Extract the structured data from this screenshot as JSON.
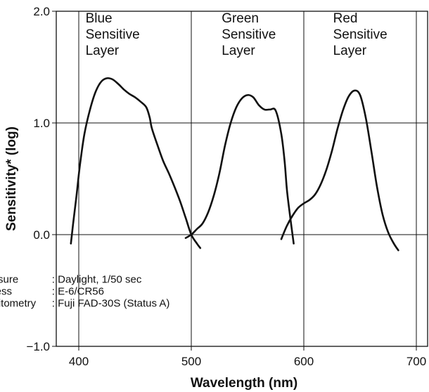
{
  "chart_data": {
    "type": "line",
    "xlabel": "Wavelength (nm)",
    "ylabel": "Sensitivity* (log)",
    "xlim": [
      380,
      710
    ],
    "ylim": [
      -1.0,
      2.0
    ],
    "x_ticks": [
      "400",
      "500",
      "600",
      "700"
    ],
    "x_tick_values": [
      400,
      500,
      600,
      700
    ],
    "y_ticks": [
      "2.0",
      "1.0",
      "0.0",
      "−1.0"
    ],
    "y_tick_values": [
      2.0,
      1.0,
      0.0,
      -1.0
    ],
    "grid": {
      "vertical_at": [
        400,
        500,
        600,
        700
      ],
      "horizontal_at": [
        1.0,
        0.0
      ]
    },
    "region_labels": [
      {
        "lines": [
          "Blue",
          "Sensitive",
          "Layer"
        ],
        "x": 406,
        "y": 1.9
      },
      {
        "lines": [
          "Green",
          "Sensitive",
          "Layer"
        ],
        "x": 527,
        "y": 1.9
      },
      {
        "lines": [
          "Red",
          "Sensitive",
          "Layer"
        ],
        "x": 626,
        "y": 1.9
      }
    ],
    "series": [
      {
        "x": [
          393,
          395,
          398,
          401,
          405,
          410,
          415,
          420,
          425,
          430,
          435,
          440,
          445,
          450,
          455,
          460,
          463,
          465,
          470,
          475,
          480,
          485,
          490,
          495,
          500,
          505,
          508
        ],
        "y": [
          -0.08,
          0.1,
          0.35,
          0.62,
          0.9,
          1.12,
          1.28,
          1.37,
          1.4,
          1.39,
          1.35,
          1.3,
          1.26,
          1.23,
          1.19,
          1.14,
          1.05,
          0.95,
          0.8,
          0.66,
          0.55,
          0.43,
          0.3,
          0.15,
          0.0,
          -0.08,
          -0.12
        ]
      },
      {
        "x": [
          495,
          500,
          505,
          510,
          515,
          520,
          525,
          530,
          535,
          540,
          545,
          550,
          555,
          560,
          565,
          570,
          575,
          580,
          583,
          585,
          588,
          591
        ],
        "y": [
          -0.03,
          0.0,
          0.05,
          0.1,
          0.2,
          0.35,
          0.55,
          0.8,
          1.0,
          1.14,
          1.22,
          1.25,
          1.23,
          1.16,
          1.12,
          1.12,
          1.11,
          0.9,
          0.65,
          0.4,
          0.15,
          -0.08
        ]
      },
      {
        "x": [
          580,
          585,
          590,
          595,
          600,
          605,
          610,
          615,
          620,
          625,
          630,
          635,
          640,
          645,
          650,
          655,
          660,
          665,
          670,
          675,
          680,
          684
        ],
        "y": [
          -0.04,
          0.08,
          0.17,
          0.24,
          0.28,
          0.31,
          0.36,
          0.45,
          0.58,
          0.75,
          0.95,
          1.12,
          1.24,
          1.29,
          1.25,
          1.05,
          0.75,
          0.43,
          0.18,
          0.02,
          -0.08,
          -0.14
        ]
      }
    ],
    "annotation": {
      "rows": [
        {
          "label": "Exposure",
          "value": ": Daylight, 1/50 sec"
        },
        {
          "label": "Process",
          "value": ": E-6/CR56"
        },
        {
          "label": "Densitometry",
          "value": ": Fuji FAD-30S (Status A)"
        }
      ],
      "x": 458,
      "y": -0.43
    }
  }
}
